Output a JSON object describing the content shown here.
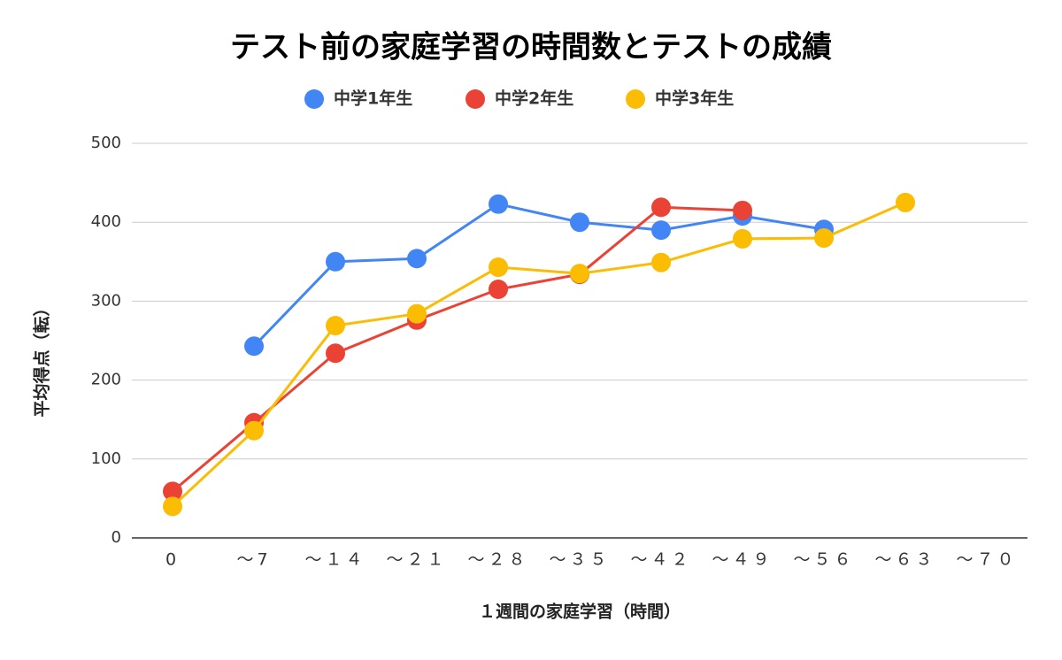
{
  "chart_data": {
    "type": "line",
    "title": "テスト前の家庭学習の時間数とテストの成績",
    "x_label": "１週間の家庭学習（時間）",
    "y_label": "平均得点（転）",
    "categories": [
      "0",
      "～7",
      "～１４",
      "～２１",
      "～２８",
      "～３５",
      "～４２",
      "～４９",
      "～５６",
      "～６３",
      "～７０"
    ],
    "series": [
      {
        "name": "中学1年生",
        "color": "#4285f4",
        "values": [
          null,
          243,
          350,
          354,
          423,
          400,
          390,
          408,
          391,
          null,
          null
        ]
      },
      {
        "name": "中学2年生",
        "color": "#ea4335",
        "values": [
          59,
          146,
          234,
          276,
          315,
          334,
          419,
          415,
          null,
          null,
          null
        ]
      },
      {
        "name": "中学3年生",
        "color": "#fbbc04",
        "values": [
          40,
          136,
          269,
          284,
          343,
          335,
          349,
          379,
          380,
          425,
          null
        ]
      }
    ],
    "ylim": [
      0,
      500
    ],
    "yticks": [
      0,
      100,
      200,
      300,
      400,
      500
    ],
    "grid": true,
    "legend": "top"
  }
}
